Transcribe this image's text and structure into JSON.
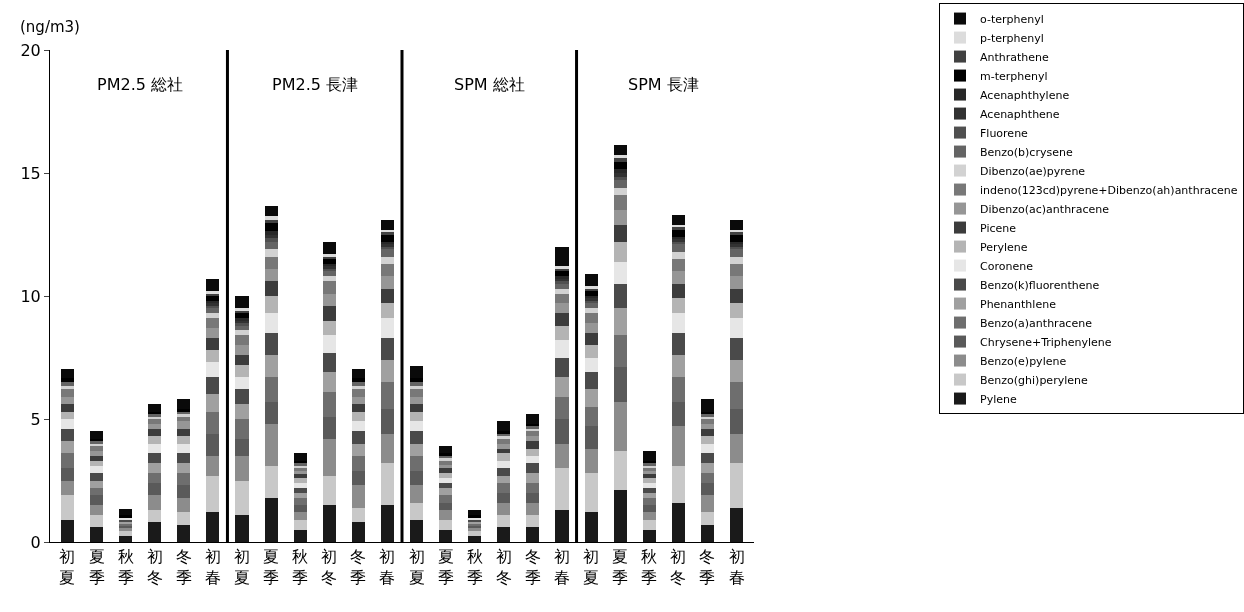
{
  "chart_data": {
    "type": "bar",
    "stacked": true,
    "ylabel": "(ng/m3)",
    "categories": [
      "初夏",
      "夏季",
      "秋季",
      "初冬",
      "冬季",
      "初春",
      "初夏",
      "夏季",
      "秋季",
      "初冬",
      "冬季",
      "初春",
      "初夏",
      "夏季",
      "秋季",
      "初冬",
      "冬季",
      "初春",
      "初夏",
      "夏季",
      "秋季",
      "初冬",
      "冬季",
      "初春"
    ],
    "annotations": [
      "PM2.5 総社",
      "PM2.5 長津",
      "SPM 総社",
      "SPM 長津"
    ],
    "ylim": [
      0,
      20
    ],
    "yticks": [
      0,
      5,
      10,
      15,
      20
    ],
    "legend": "top right",
    "series": [
      {
        "name": "Pylene",
        "color": "#1a1a1a",
        "values": [
          0.9,
          0.6,
          0.25,
          0.8,
          0.7,
          1.2,
          1.1,
          1.8,
          0.5,
          1.5,
          0.8,
          1.5,
          0.9,
          0.5,
          0.25,
          0.6,
          0.6,
          1.3,
          1.2,
          2.1,
          0.5,
          1.6,
          0.7,
          1.4
        ]
      },
      {
        "name": "Benzo(ghi)perylene",
        "color": "#c8c8c8",
        "values": [
          1.0,
          0.5,
          0.2,
          0.5,
          0.5,
          1.5,
          1.4,
          1.3,
          0.4,
          1.2,
          0.6,
          1.7,
          0.7,
          0.4,
          0.2,
          0.5,
          0.5,
          1.7,
          1.6,
          1.6,
          0.4,
          1.5,
          0.5,
          1.8
        ]
      },
      {
        "name": "Benzo(e)pylene",
        "color": "#8c8c8c",
        "values": [
          0.6,
          0.4,
          0.1,
          0.6,
          0.6,
          0.8,
          1.0,
          1.7,
          0.3,
          1.5,
          0.9,
          1.2,
          0.7,
          0.4,
          0.1,
          0.5,
          0.5,
          1.0,
          1.0,
          2.0,
          0.3,
          1.6,
          0.7,
          1.2
        ]
      },
      {
        "name": "Chrysene+Triphenylene",
        "color": "#5a5a5a",
        "values": [
          0.5,
          0.4,
          0.1,
          0.5,
          0.5,
          0.9,
          0.7,
          0.9,
          0.3,
          0.9,
          0.6,
          1.0,
          0.6,
          0.3,
          0.1,
          0.4,
          0.4,
          1.0,
          0.9,
          1.4,
          0.3,
          1.0,
          0.5,
          1.0
        ]
      },
      {
        "name": "Benzo(a)anthracene",
        "color": "#6e6e6e",
        "values": [
          0.6,
          0.3,
          0.1,
          0.4,
          0.5,
          0.9,
          0.8,
          1.0,
          0.3,
          1.0,
          0.6,
          1.1,
          0.6,
          0.3,
          0.1,
          0.4,
          0.4,
          0.9,
          0.8,
          1.3,
          0.3,
          1.0,
          0.4,
          1.1
        ]
      },
      {
        "name": "Phenanthlene",
        "color": "#a0a0a0",
        "values": [
          0.5,
          0.3,
          0.08,
          0.4,
          0.4,
          0.7,
          0.6,
          0.9,
          0.2,
          0.8,
          0.5,
          0.9,
          0.5,
          0.3,
          0.08,
          0.3,
          0.4,
          0.8,
          0.7,
          1.1,
          0.2,
          0.9,
          0.4,
          0.9
        ]
      },
      {
        "name": "Benzo(k)fluorenthene",
        "color": "#4a4a4a",
        "values": [
          0.5,
          0.3,
          0.08,
          0.4,
          0.4,
          0.7,
          0.6,
          0.9,
          0.2,
          0.8,
          0.5,
          0.9,
          0.5,
          0.2,
          0.08,
          0.3,
          0.4,
          0.8,
          0.7,
          1.0,
          0.2,
          0.9,
          0.4,
          0.9
        ]
      },
      {
        "name": "Coronene",
        "color": "#e6e6e6",
        "values": [
          0.4,
          0.3,
          0.08,
          0.4,
          0.4,
          0.6,
          0.5,
          0.8,
          0.2,
          0.7,
          0.4,
          0.8,
          0.4,
          0.2,
          0.08,
          0.3,
          0.3,
          0.7,
          0.6,
          0.9,
          0.2,
          0.8,
          0.4,
          0.8
        ]
      },
      {
        "name": "Perylene",
        "color": "#b4b4b4",
        "values": [
          0.3,
          0.2,
          0,
          0.3,
          0.3,
          0.5,
          0.5,
          0.7,
          0.2,
          0.6,
          0.4,
          0.6,
          0.4,
          0.2,
          0,
          0.3,
          0.3,
          0.6,
          0.5,
          0.8,
          0.2,
          0.6,
          0.3,
          0.6
        ]
      },
      {
        "name": "Picene",
        "color": "#3c3c3c",
        "values": [
          0.3,
          0.2,
          0,
          0.3,
          0.3,
          0.5,
          0.4,
          0.6,
          0.15,
          0.6,
          0.3,
          0.6,
          0.3,
          0.2,
          0,
          0.2,
          0.3,
          0.5,
          0.5,
          0.7,
          0.15,
          0.6,
          0.3,
          0.6
        ]
      },
      {
        "name": "Dibenzo(ac)anthracene",
        "color": "#969696",
        "values": [
          0.3,
          0.2,
          0,
          0.2,
          0.3,
          0.4,
          0.4,
          0.5,
          0.15,
          0.5,
          0.3,
          0.5,
          0.3,
          0.15,
          0,
          0.2,
          0.2,
          0.4,
          0.4,
          0.6,
          0.15,
          0.5,
          0.2,
          0.5
        ]
      },
      {
        "name": "indeno(123cd)pyrene+Dibenzo(ah)anthracene",
        "color": "#787878",
        "values": [
          0.3,
          0.2,
          0,
          0.2,
          0.2,
          0.4,
          0.4,
          0.5,
          0.1,
          0.5,
          0.3,
          0.5,
          0.3,
          0.15,
          0,
          0.2,
          0.2,
          0.4,
          0.4,
          0.6,
          0.1,
          0.5,
          0.2,
          0.5
        ]
      },
      {
        "name": "Dibenzo(ae)pyrene",
        "color": "#d2d2d2",
        "values": [
          0.15,
          0.1,
          0,
          0.1,
          0.1,
          0.2,
          0.2,
          0.3,
          0.1,
          0.2,
          0.15,
          0.3,
          0.15,
          0.1,
          0,
          0.1,
          0.1,
          0.2,
          0.2,
          0.3,
          0.1,
          0.3,
          0.1,
          0.3
        ]
      },
      {
        "name": "Benzo(b)crysene",
        "color": "#646464",
        "values": [
          0.15,
          0.1,
          0,
          0.1,
          0.1,
          0.2,
          0.2,
          0.3,
          0.1,
          0.2,
          0.15,
          0.3,
          0.15,
          0.1,
          0,
          0.1,
          0.1,
          0.2,
          0.2,
          0.3,
          0.1,
          0.3,
          0.1,
          0.3
        ]
      },
      {
        "name": "Fluorene",
        "color": "#505050",
        "values": [
          0,
          0,
          0,
          0,
          0,
          0.1,
          0.1,
          0.15,
          0,
          0.1,
          0,
          0.1,
          0,
          0,
          0,
          0,
          0,
          0.1,
          0.1,
          0.15,
          0,
          0.1,
          0,
          0.1
        ]
      },
      {
        "name": "Acenaphthene",
        "color": "#323232",
        "values": [
          0,
          0,
          0,
          0,
          0,
          0.1,
          0.1,
          0.15,
          0,
          0.1,
          0,
          0.1,
          0,
          0,
          0,
          0,
          0,
          0.1,
          0.1,
          0.15,
          0,
          0.1,
          0,
          0.1
        ]
      },
      {
        "name": "Acenaphthylene",
        "color": "#282828",
        "values": [
          0,
          0,
          0,
          0,
          0,
          0.1,
          0.1,
          0.15,
          0,
          0.1,
          0,
          0.1,
          0,
          0,
          0,
          0,
          0,
          0.1,
          0.1,
          0.15,
          0,
          0.1,
          0,
          0.1
        ]
      },
      {
        "name": "m-terphenyl",
        "color": "#000000",
        "values": [
          0.15,
          0.1,
          0.1,
          0.1,
          0.1,
          0.2,
          0.2,
          0.3,
          0.1,
          0.2,
          0.15,
          0.3,
          0.15,
          0.1,
          0.1,
          0.1,
          0.1,
          0.2,
          0.2,
          0.3,
          0.1,
          0.3,
          0.1,
          0.3
        ]
      },
      {
        "name": "Anthrathene",
        "color": "#414141",
        "values": [
          0,
          0,
          0,
          0,
          0,
          0.1,
          0.1,
          0.15,
          0,
          0.1,
          0,
          0.1,
          0,
          0,
          0,
          0,
          0,
          0.1,
          0.1,
          0.15,
          0,
          0.1,
          0,
          0.1
        ]
      },
      {
        "name": "p-terphenyl",
        "color": "#dcdcdc",
        "values": [
          0,
          0,
          0,
          0,
          0,
          0.1,
          0.1,
          0.15,
          0,
          0.1,
          0,
          0.1,
          0,
          0,
          0,
          0,
          0,
          0.1,
          0.1,
          0.15,
          0,
          0.1,
          0,
          0.1
        ]
      },
      {
        "name": "o-terphenyl",
        "color": "#0a0a0a",
        "values": [
          0.4,
          0.3,
          0.25,
          0.3,
          0.4,
          0.5,
          0.5,
          0.4,
          0.3,
          0.5,
          0.4,
          0.4,
          0.5,
          0.3,
          0.2,
          0.4,
          0.4,
          0.8,
          0.5,
          0.4,
          0.4,
          0.4,
          0.5,
          0.4
        ]
      }
    ]
  }
}
